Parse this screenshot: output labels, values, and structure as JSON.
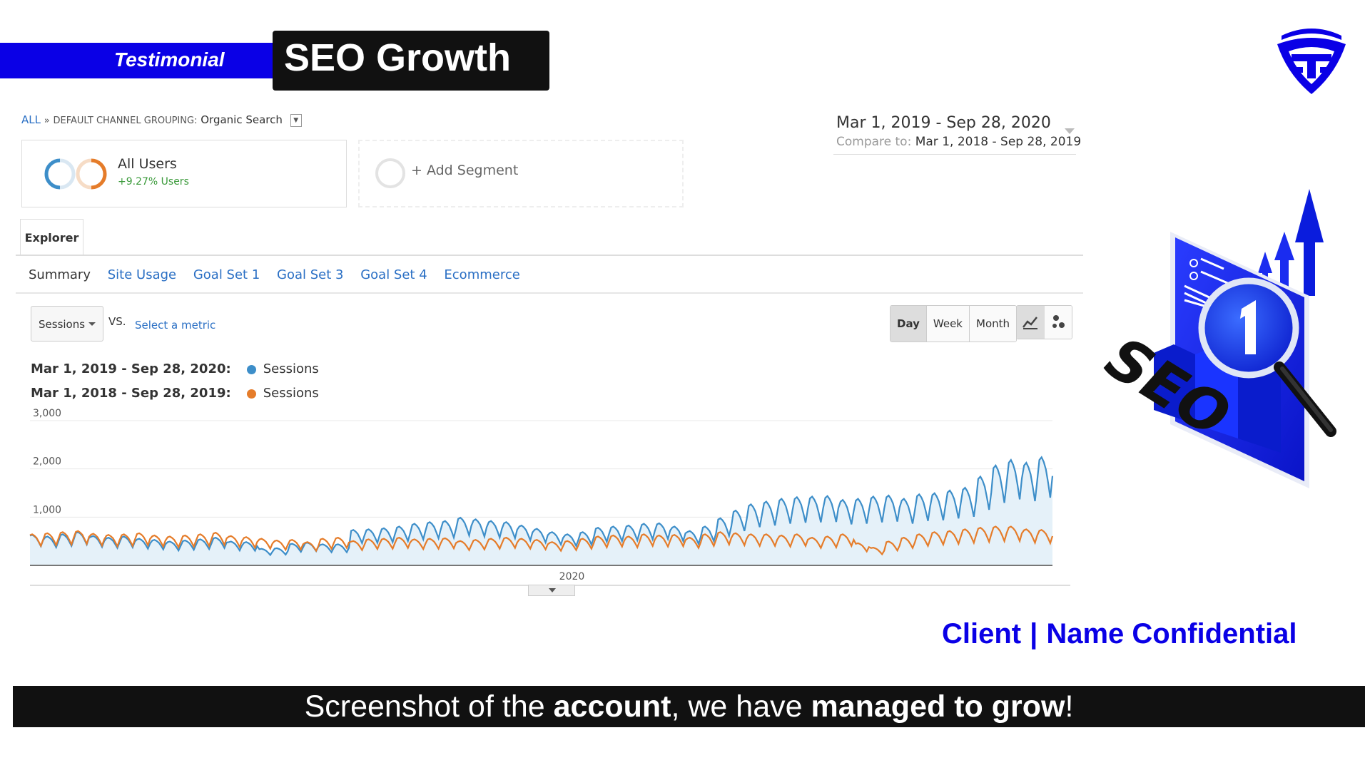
{
  "header": {
    "tag": "Testimonial",
    "title": "SEO Growth"
  },
  "breadcrumb": {
    "all": "ALL",
    "separator": "»",
    "grouping_label": "DEFAULT CHANNEL GROUPING:",
    "grouping_value": "Organic Search"
  },
  "segments": {
    "primary_title": "All Users",
    "primary_sub": "+9.27% Users",
    "add": "+ Add Segment"
  },
  "date": {
    "range": "Mar 1, 2019 - Sep 28, 2020",
    "compare_label": "Compare to:",
    "compare_range": "Mar 1, 2018 - Sep 28, 2019"
  },
  "tabs": {
    "explorer": "Explorer",
    "subtabs": [
      "Summary",
      "Site Usage",
      "Goal Set 1",
      "Goal Set 3",
      "Goal Set 4",
      "Ecommerce"
    ]
  },
  "controls": {
    "metric": "Sessions",
    "vs": "VS.",
    "select_metric": "Select a metric",
    "periods": [
      "Day",
      "Week",
      "Month"
    ],
    "active_period": "Day",
    "chart_type_icons": [
      "line-chart-icon",
      "motion-chart-icon"
    ]
  },
  "legend": [
    {
      "range": "Mar 1, 2019 - Sep 28, 2020:",
      "metric": "Sessions",
      "color": "#3d8ec9"
    },
    {
      "range": "Mar 1, 2018 - Sep 28, 2019:",
      "metric": "Sessions",
      "color": "#e57c2a"
    }
  ],
  "chart_data": {
    "type": "line",
    "ylim": [
      0,
      3000
    ],
    "y_ticks": [
      "3,000",
      "2,000",
      "1,000"
    ],
    "x_tick_label": "2020",
    "x_tick_fraction": 0.53,
    "series": [
      {
        "name": "Sessions",
        "color": "#3d8ec9",
        "fill": "#e5f1f9",
        "points_per_week": 7,
        "weekly_levels": [
          550,
          520,
          560,
          600,
          530,
          500,
          520,
          480,
          460,
          430,
          450,
          470,
          500,
          430,
          420,
          300,
          310,
          390,
          410,
          380,
          380,
          640,
          650,
          670,
          700,
          750,
          780,
          800,
          860,
          830,
          800,
          780,
          720,
          660,
          600,
          560,
          600,
          680,
          700,
          720,
          750,
          760,
          700,
          620,
          700,
          850,
          990,
          1100,
          1150,
          1200,
          1230,
          1240,
          1250,
          1180,
          1200,
          1240,
          1260,
          1200,
          1280,
          1300,
          1350,
          1400,
          1600,
          1800,
          1900,
          1850,
          1950
        ]
      },
      {
        "name": "Sessions",
        "color": "#e57c2a",
        "fill": "none",
        "points_per_week": 7,
        "weekly_levels": [
          560,
          580,
          600,
          620,
          570,
          550,
          560,
          580,
          540,
          520,
          540,
          560,
          590,
          530,
          510,
          480,
          450,
          460,
          420,
          480,
          500,
          440,
          470,
          480,
          500,
          470,
          480,
          490,
          440,
          460,
          480,
          500,
          480,
          460,
          420,
          440,
          480,
          520,
          540,
          520,
          560,
          540,
          550,
          500,
          560,
          600,
          580,
          560,
          560,
          540,
          560,
          500,
          520,
          560,
          400,
          320,
          430,
          500,
          560,
          600,
          620,
          650,
          680,
          700,
          700,
          650,
          640
        ]
      }
    ]
  },
  "client": {
    "label": "Client",
    "separator": "|",
    "name": "Name Confidential"
  },
  "footer": {
    "part1": "Screenshot of the ",
    "bold1": "account",
    "part2": ", we have ",
    "bold2": "managed to grow",
    "part3": "!"
  },
  "colors": {
    "brand_blue": "#0a00e6",
    "dark": "#111111",
    "link_blue": "#2a6fc4"
  }
}
